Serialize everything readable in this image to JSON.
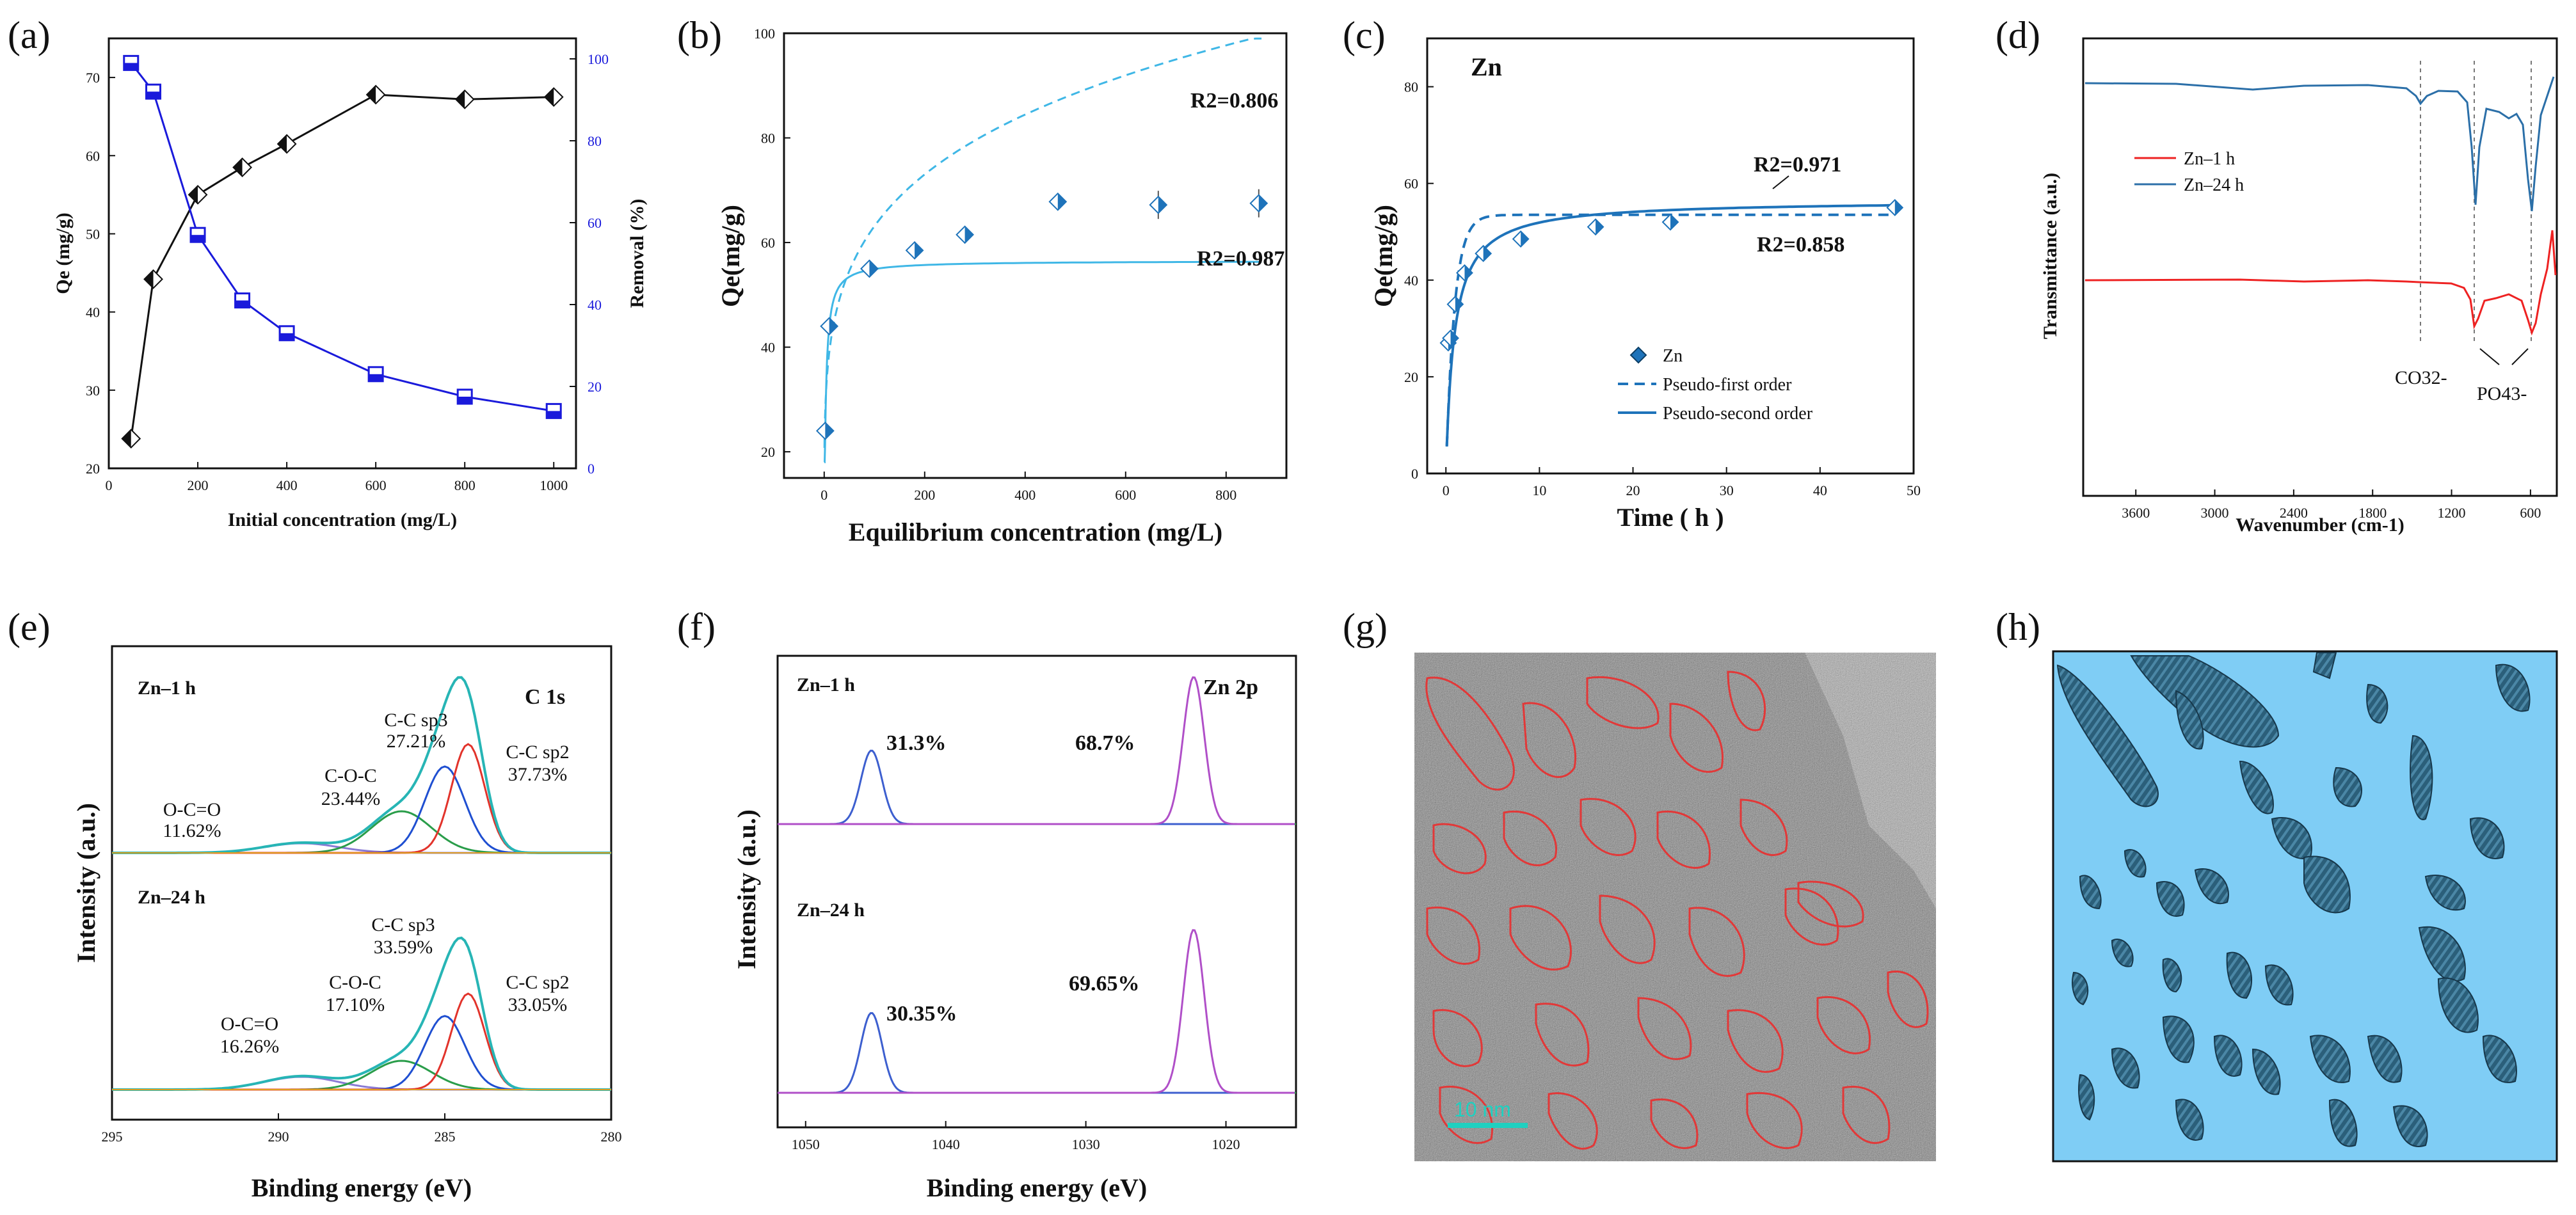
{
  "chart_data": [
    {
      "id": "a",
      "panel_label": "(a)",
      "type": "line",
      "xlabel": "Initial concentration (mg/L)",
      "ylabel": "Qe (mg/g)",
      "y2label": "Removal (%)",
      "xlim": [
        0,
        1050
      ],
      "ylim": [
        20,
        75
      ],
      "y2lim": [
        0,
        105
      ],
      "xticks": [
        0,
        200,
        400,
        600,
        800,
        1000
      ],
      "yticks": [
        20,
        30,
        40,
        50,
        60,
        70
      ],
      "y2ticks": [
        0,
        20,
        40,
        60,
        80,
        100
      ],
      "x": [
        50,
        100,
        200,
        300,
        400,
        600,
        800,
        1000
      ],
      "series": [
        {
          "name": "Qe",
          "axis": "left",
          "color": "#111111",
          "values": [
            23.8,
            44.2,
            55.0,
            58.5,
            61.5,
            67.8,
            67.2,
            67.5
          ]
        },
        {
          "name": "Removal",
          "axis": "right",
          "color": "#1a1adb",
          "values": [
            99,
            92,
            57,
            41,
            33,
            23,
            17.5,
            14
          ]
        }
      ]
    },
    {
      "id": "b",
      "panel_label": "(b)",
      "type": "scatter",
      "xlabel": "Equilibrium concentration (mg/L)",
      "ylabel": "Qe(mg/g)",
      "xlim": [
        -80,
        920
      ],
      "ylim": [
        15,
        100
      ],
      "xticks": [
        0,
        200,
        400,
        600,
        800
      ],
      "yticks": [
        20,
        40,
        60,
        80,
        100
      ],
      "points": {
        "x": [
          2,
          10,
          90,
          180,
          280,
          465,
          665,
          865
        ],
        "y": [
          24,
          44,
          55,
          58.5,
          61.5,
          67.8,
          67.2,
          67.5
        ]
      },
      "annotations": [
        "R2=0.806",
        "R2=0.987"
      ]
    },
    {
      "id": "c",
      "panel_label": "(c)",
      "type": "scatter",
      "title": "Zn",
      "xlabel": "Time ( h )",
      "ylabel": "Qe(mg/g)",
      "xlim": [
        -2,
        50
      ],
      "ylim": [
        0,
        90
      ],
      "xticks": [
        0,
        10,
        20,
        30,
        40,
        50
      ],
      "yticks": [
        0,
        20,
        40,
        60,
        80
      ],
      "points": {
        "x": [
          0.25,
          0.5,
          1,
          2,
          4,
          8,
          16,
          24,
          48
        ],
        "y": [
          27,
          28,
          35,
          41.5,
          45.5,
          48.5,
          51,
          52,
          55
        ]
      },
      "legend": [
        "Zn",
        "Pseudo-first order",
        "Pseudo-second order"
      ],
      "annotations": [
        "R2=0.971",
        "R2=0.858"
      ]
    },
    {
      "id": "d",
      "panel_label": "(d)",
      "type": "line",
      "xlabel": "Wavenumber (cm-1)",
      "ylabel": "Transmittance (a.u.)",
      "xlim": [
        4000,
        400
      ],
      "xticks": [
        3600,
        3000,
        2400,
        1800,
        1200,
        600
      ],
      "legend": [
        "Zn–1 h",
        "Zn–24 h"
      ],
      "series_colors": [
        "#ee2222",
        "#2b6fa8"
      ],
      "annotations": [
        "CO32-",
        "PO43-"
      ]
    },
    {
      "id": "e",
      "panel_label": "(e)",
      "type": "line",
      "title": "C 1s",
      "xlabel": "Binding energy (eV)",
      "ylabel": "Intensity (a.u.)",
      "xlim": [
        295,
        280
      ],
      "xticks": [
        295,
        290,
        285,
        280
      ],
      "samples": [
        {
          "name": "Zn–1 h",
          "peaks": [
            {
              "label": "O-C=O",
              "value": "11.62%"
            },
            {
              "label": "C-O-C",
              "value": "23.44%"
            },
            {
              "label": "C-C sp3",
              "value": "27.21%"
            },
            {
              "label": "C-C sp2",
              "value": "37.73%"
            }
          ]
        },
        {
          "name": "Zn–24 h",
          "peaks": [
            {
              "label": "O-C=O",
              "value": "16.26%"
            },
            {
              "label": "C-O-C",
              "value": "17.10%"
            },
            {
              "label": "C-C sp3",
              "value": "33.59%"
            },
            {
              "label": "C-C sp2",
              "value": "33.05%"
            }
          ]
        }
      ]
    },
    {
      "id": "f",
      "panel_label": "(f)",
      "type": "line",
      "title": "Zn 2p",
      "xlabel": "Binding energy (eV)",
      "ylabel": "Intensity (a.u.)",
      "xlim": [
        1052,
        1015
      ],
      "xticks": [
        1050,
        1040,
        1030,
        1020
      ],
      "samples": [
        {
          "name": "Zn–1 h",
          "peaks": [
            {
              "value": "31.3%"
            },
            {
              "value": "68.7%"
            }
          ]
        },
        {
          "name": "Zn–24 h",
          "peaks": [
            {
              "value": "30.35%"
            },
            {
              "value": "69.65%"
            }
          ]
        }
      ]
    }
  ],
  "images": {
    "g": {
      "panel_label": "(g)",
      "scale_bar": "10 nm"
    },
    "h": {
      "panel_label": "(h)"
    }
  }
}
